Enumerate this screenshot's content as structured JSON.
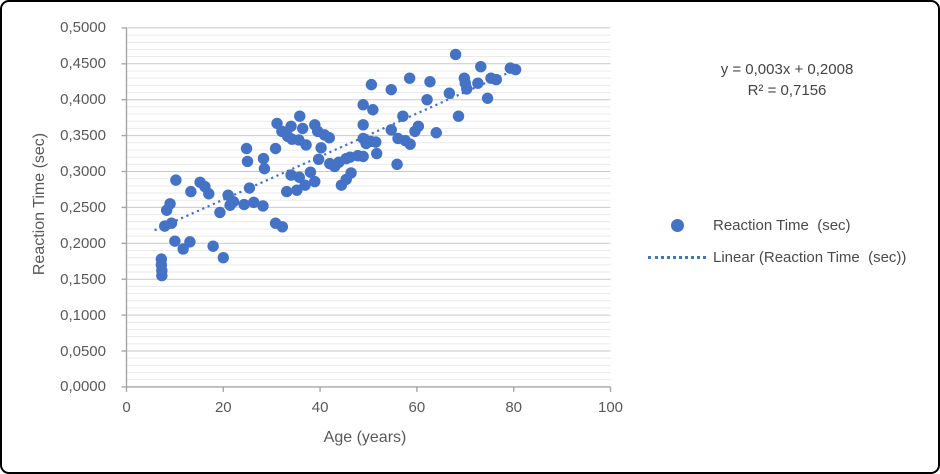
{
  "chart_data": {
    "type": "scatter",
    "title": "",
    "xlabel": "Age (years)",
    "ylabel": "Reaction Time (sec)",
    "xlim": [
      0,
      100
    ],
    "ylim": [
      0,
      0.5
    ],
    "x_ticks": [
      0,
      20,
      40,
      60,
      80,
      100
    ],
    "x_tick_labels": [
      "0",
      "20",
      "40",
      "60",
      "80",
      "100"
    ],
    "y_ticks": [
      0,
      0.05,
      0.1,
      0.15,
      0.2,
      0.25,
      0.3,
      0.35,
      0.4,
      0.45,
      0.5
    ],
    "y_tick_labels": [
      "0,0000",
      "0,0500",
      "0,1000",
      "0,1500",
      "0,2000",
      "0,2500",
      "0,3000",
      "0,3500",
      "0,4000",
      "0,4500",
      "0,5000"
    ],
    "y_minor_grid_step": 0.01,
    "grid": "horizontal minor + major gridlines",
    "legend_position": "right",
    "series": [
      {
        "name": "Reaction Time  (sec)",
        "marker": "circle",
        "points": [
          [
            7.2,
            0.178
          ],
          [
            7.2,
            0.17
          ],
          [
            7.3,
            0.162
          ],
          [
            7.3,
            0.155
          ],
          [
            7.9,
            0.224
          ],
          [
            9.3,
            0.228
          ],
          [
            8.3,
            0.246
          ],
          [
            9.0,
            0.255
          ],
          [
            10.0,
            0.203
          ],
          [
            11.7,
            0.192
          ],
          [
            13.1,
            0.202
          ],
          [
            17.9,
            0.196
          ],
          [
            20.0,
            0.18
          ],
          [
            10.2,
            0.288
          ],
          [
            13.3,
            0.272
          ],
          [
            15.2,
            0.285
          ],
          [
            16.2,
            0.279
          ],
          [
            17.0,
            0.269
          ],
          [
            19.3,
            0.243
          ],
          [
            21.4,
            0.253
          ],
          [
            21.0,
            0.267
          ],
          [
            22.1,
            0.258
          ],
          [
            24.3,
            0.254
          ],
          [
            26.3,
            0.257
          ],
          [
            24.8,
            0.332
          ],
          [
            25.0,
            0.314
          ],
          [
            25.4,
            0.277
          ],
          [
            28.3,
            0.318
          ],
          [
            28.5,
            0.304
          ],
          [
            30.8,
            0.332
          ],
          [
            31.1,
            0.367
          ],
          [
            32.1,
            0.356
          ],
          [
            33.1,
            0.272
          ],
          [
            30.8,
            0.228
          ],
          [
            32.2,
            0.223
          ],
          [
            34.0,
            0.295
          ],
          [
            35.7,
            0.292
          ],
          [
            35.2,
            0.274
          ],
          [
            36.9,
            0.281
          ],
          [
            38.0,
            0.299
          ],
          [
            38.9,
            0.286
          ],
          [
            33.3,
            0.349
          ],
          [
            34.2,
            0.345
          ],
          [
            35.6,
            0.344
          ],
          [
            34.0,
            0.363
          ],
          [
            35.8,
            0.377
          ],
          [
            36.4,
            0.36
          ],
          [
            37.1,
            0.337
          ],
          [
            38.9,
            0.365
          ],
          [
            39.5,
            0.356
          ],
          [
            39.7,
            0.317
          ],
          [
            40.2,
            0.333
          ],
          [
            40.9,
            0.351
          ],
          [
            41.9,
            0.347
          ],
          [
            42.0,
            0.311
          ],
          [
            43.0,
            0.307
          ],
          [
            43.9,
            0.313
          ],
          [
            45.4,
            0.318
          ],
          [
            46.2,
            0.32
          ],
          [
            47.8,
            0.322
          ],
          [
            46.4,
            0.298
          ],
          [
            44.4,
            0.281
          ],
          [
            45.4,
            0.289
          ],
          [
            28.2,
            0.252
          ],
          [
            48.9,
            0.321
          ],
          [
            48.9,
            0.346
          ],
          [
            49.5,
            0.339
          ],
          [
            50.4,
            0.342
          ],
          [
            51.5,
            0.341
          ],
          [
            51.7,
            0.325
          ],
          [
            48.9,
            0.365
          ],
          [
            48.9,
            0.393
          ],
          [
            50.9,
            0.386
          ],
          [
            50.6,
            0.421
          ],
          [
            54.7,
            0.414
          ],
          [
            54.7,
            0.358
          ],
          [
            56.1,
            0.346
          ],
          [
            55.9,
            0.31
          ],
          [
            57.1,
            0.377
          ],
          [
            57.6,
            0.343
          ],
          [
            58.6,
            0.338
          ],
          [
            58.5,
            0.43
          ],
          [
            59.6,
            0.356
          ],
          [
            60.3,
            0.363
          ],
          [
            62.1,
            0.4
          ],
          [
            62.7,
            0.425
          ],
          [
            64.0,
            0.354
          ],
          [
            66.7,
            0.409
          ],
          [
            68.0,
            0.463
          ],
          [
            68.6,
            0.377
          ],
          [
            69.8,
            0.43
          ],
          [
            70.0,
            0.423
          ],
          [
            70.3,
            0.415
          ],
          [
            72.6,
            0.423
          ],
          [
            73.2,
            0.446
          ],
          [
            75.3,
            0.43
          ],
          [
            76.4,
            0.428
          ],
          [
            74.6,
            0.402
          ],
          [
            79.3,
            0.444
          ],
          [
            80.4,
            0.442
          ]
        ]
      }
    ],
    "trendline": {
      "name": "Linear (Reaction Time  (sec))",
      "style": "dotted",
      "slope": 0.003,
      "intercept": 0.2008,
      "x_start": 5.8,
      "x_end": 80.3,
      "equation": "y = 0,003x + 0,2008",
      "r_squared": "R² = 0,7156"
    },
    "annotation": {
      "line1": "y = 0,003x + 0,2008",
      "line2": "R² = 0,7156"
    },
    "legend": [
      {
        "label": "Reaction Time  (sec)",
        "swatch": "circle-marker"
      },
      {
        "label": "Linear (Reaction Time  (sec))",
        "swatch": "dotted-line"
      }
    ],
    "colors": {
      "point": "#4472C4",
      "trendline": "#4472C4",
      "grid_minor": "#EAEAEA",
      "grid_major": "#C9C9C9",
      "axis": "#A6A6A6",
      "text": "#595959",
      "border": "#000000",
      "background": "#FFFFFF"
    }
  }
}
